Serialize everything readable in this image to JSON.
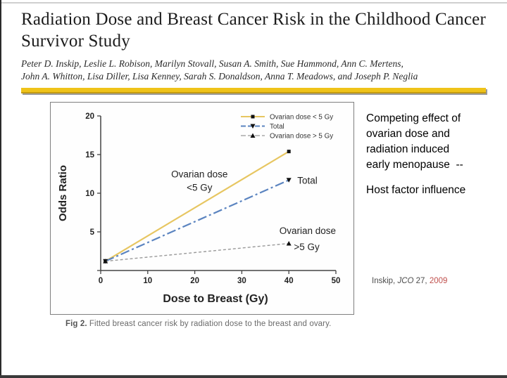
{
  "slide": {
    "title": "Radiation Dose and Breast Cancer Risk in the Childhood Cancer Survivor Study",
    "authors_line1": "Peter D. Inskip, Leslie L. Robison, Marilyn Stovall, Susan A. Smith, Sue Hammond, Ann C. Mertens,",
    "authors_line2": "John A. Whitton, Lisa Diller, Lisa Kenney, Sarah S. Donaldson, Anna T. Meadows, and Joseph P. Neglia",
    "divider_color": "#efc319"
  },
  "figure": {
    "caption_prefix": "Fig 2.",
    "caption_text": " Fitted breast cancer risk by radiation dose to the breast and ovary."
  },
  "chart_data": {
    "type": "line",
    "title": "",
    "xlabel": "Dose to Breast (Gy)",
    "ylabel": "Odds Ratio",
    "xlim": [
      0,
      50
    ],
    "ylim": [
      0,
      20
    ],
    "xticks": [
      0,
      10,
      20,
      30,
      40,
      50
    ],
    "yticks": [
      0,
      5,
      10,
      15,
      20
    ],
    "grid": false,
    "legend_position": "top-right",
    "series": [
      {
        "name": "Ovarian dose < 5 Gy",
        "color": "#e7c661",
        "style": "solid",
        "marker": "square",
        "x": [
          1,
          40
        ],
        "y": [
          1.2,
          15.4
        ]
      },
      {
        "name": "Total",
        "color": "#5b84c0",
        "style": "dashdot",
        "marker": "triangle-down",
        "x": [
          1,
          40
        ],
        "y": [
          1.2,
          11.7
        ]
      },
      {
        "name": "Ovarian dose > 5 Gy",
        "color": "#999999",
        "style": "dashed",
        "marker": "triangle-up",
        "x": [
          1,
          40
        ],
        "y": [
          1.2,
          3.5
        ]
      }
    ],
    "annotations": [
      {
        "text": "Ovarian dose",
        "x": 21,
        "y": 12.4,
        "anchor": "middle"
      },
      {
        "text": "<5 Gy",
        "x": 21,
        "y": 10.7,
        "anchor": "middle"
      },
      {
        "text": "Total",
        "x": 41.8,
        "y": 11.6,
        "anchor": "start"
      },
      {
        "text": "Ovarian dose",
        "x": 44,
        "y": 5.1,
        "anchor": "middle"
      },
      {
        "text": ">5 Gy",
        "x": 43.8,
        "y": 3.0,
        "anchor": "middle"
      }
    ]
  },
  "sidebar": {
    "note_lines": [
      "Competing effect of",
      "ovarian dose and",
      "radiation induced",
      "early menopause  --"
    ],
    "note2": "Host factor influence",
    "citation": {
      "author": "Inskip, ",
      "journal": "JCO",
      "rest": " 27, ",
      "year": "2009",
      "year_color": "#c0504d"
    }
  }
}
